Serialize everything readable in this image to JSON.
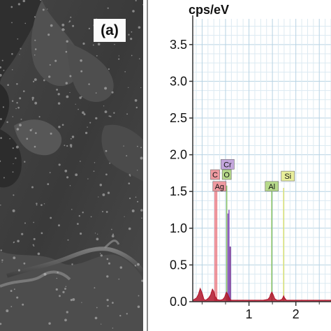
{
  "image_panel": {
    "label": "(a)"
  },
  "chart_data": {
    "type": "line",
    "title": "",
    "xlabel": "",
    "ylabel": "cps/eV",
    "xlim": [
      -0.2,
      2.75
    ],
    "ylim": [
      0,
      3.85
    ],
    "x_ticks": [
      1,
      2
    ],
    "y_ticks": [
      0.0,
      0.5,
      1.0,
      1.5,
      2.0,
      2.5,
      3.0,
      3.5
    ],
    "y_tick_labels": [
      "0.0",
      "0.5",
      "1.0",
      "1.5",
      "2.0",
      "2.5",
      "3.0",
      "3.5"
    ],
    "x_tick_labels": [
      "1",
      "2"
    ],
    "grid": true,
    "spectrum": {
      "color": "#b0142a",
      "x": [
        -0.2,
        -0.12,
        -0.08,
        -0.04,
        0.0,
        0.04,
        0.08,
        0.1,
        0.14,
        0.18,
        0.2,
        0.22,
        0.25,
        0.28,
        0.32,
        0.38,
        0.44,
        0.48,
        0.5,
        0.52,
        0.55,
        0.58,
        0.6,
        0.62,
        0.66,
        0.72,
        0.8,
        0.9,
        1.0,
        1.1,
        1.2,
        1.3,
        1.4,
        1.44,
        1.46,
        1.49,
        1.52,
        1.55,
        1.6,
        1.65,
        1.7,
        1.72,
        1.74,
        1.76,
        1.8,
        1.9,
        2.0,
        2.1,
        2.2,
        2.3,
        2.4,
        2.5,
        2.6,
        2.7,
        2.75
      ],
      "y": [
        0.02,
        0.05,
        0.1,
        0.18,
        0.12,
        0.03,
        0.02,
        0.03,
        0.05,
        0.09,
        0.13,
        0.17,
        0.14,
        0.07,
        0.03,
        0.02,
        0.03,
        0.06,
        0.1,
        0.13,
        0.1,
        0.05,
        0.03,
        0.02,
        0.02,
        0.02,
        0.02,
        0.02,
        0.02,
        0.02,
        0.02,
        0.02,
        0.03,
        0.06,
        0.1,
        0.13,
        0.09,
        0.04,
        0.02,
        0.02,
        0.03,
        0.05,
        0.08,
        0.05,
        0.02,
        0.02,
        0.02,
        0.02,
        0.02,
        0.02,
        0.02,
        0.02,
        0.02,
        0.02,
        0.02
      ]
    },
    "element_markers": [
      {
        "symbol": "C",
        "energy": 0.277,
        "height": 1.58,
        "color": "#ef9aa0",
        "line_color": "#e8707a",
        "label_y": 1.73
      },
      {
        "symbol": "Ag",
        "energy": 0.311,
        "height": 1.6,
        "color": "#ef9aa0",
        "line_color": "#e8707a",
        "label_y": 1.57
      },
      {
        "symbol": "O",
        "energy": 0.525,
        "height": 1.58,
        "color": "#b6d98a",
        "line_color": "#8dc46a",
        "label_y": 1.73
      },
      {
        "symbol": "Cr",
        "energy": 0.573,
        "height": 1.25,
        "color": "#c3a6dc",
        "line_color": "#8f5fbf",
        "label_y": 1.87
      },
      {
        "symbol": "Al",
        "energy": 1.487,
        "height": 1.55,
        "color": "#b6d98a",
        "line_color": "#8dc46a",
        "label_y": 1.57
      },
      {
        "symbol": "Si",
        "energy": 1.74,
        "height": 1.55,
        "color": "#e8ee9a",
        "line_color": "#d8e07a",
        "label_y": 1.71
      }
    ],
    "extra_lines": [
      {
        "energy": 0.6,
        "height": 0.75,
        "color": "#7a3c9a"
      },
      {
        "energy": 0.555,
        "height": 1.2,
        "color": "#8f5fbf"
      }
    ]
  }
}
